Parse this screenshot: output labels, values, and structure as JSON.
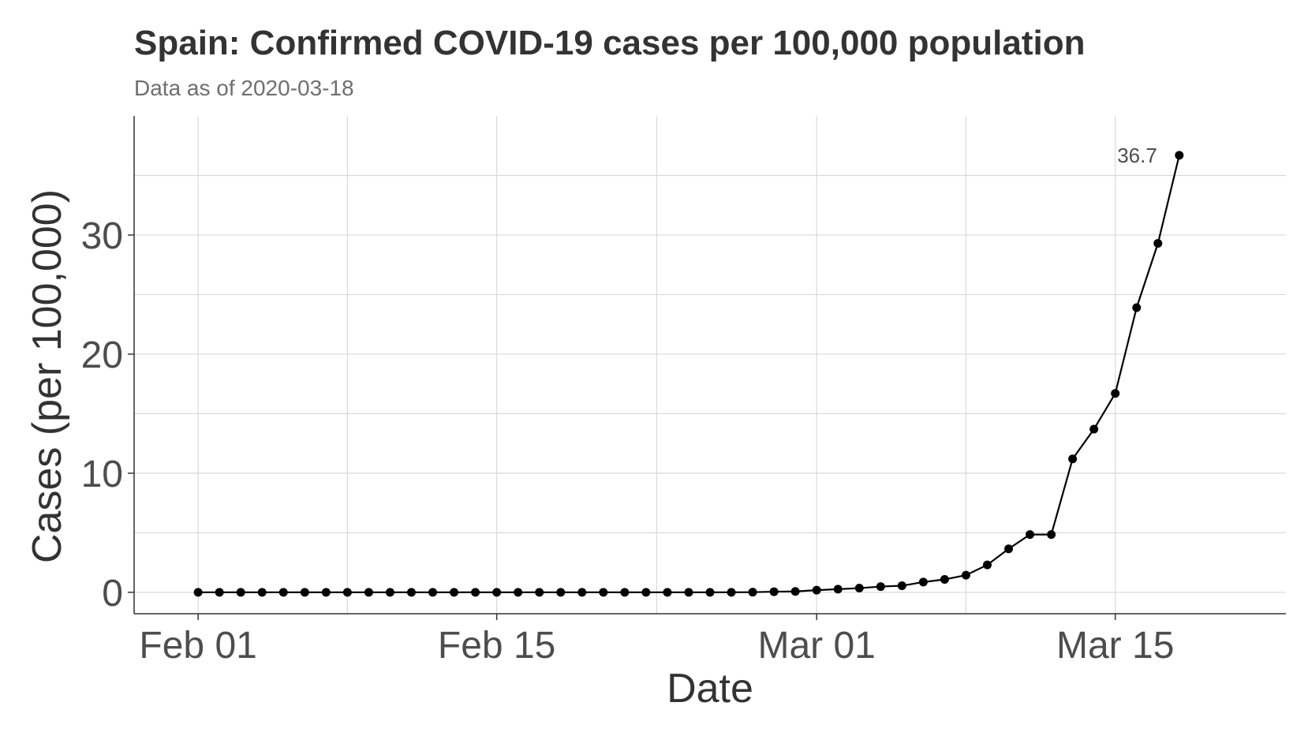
{
  "chart_data": {
    "type": "line",
    "title": "Spain: Confirmed COVID-19 cases per 100,000 population",
    "subtitle": "Data as of 2020-03-18",
    "xlabel": "Date",
    "ylabel": "Cases (per 100,000)",
    "x_tick_labels": [
      {
        "date": "2020-02-01",
        "label": "Feb 01"
      },
      {
        "date": "2020-02-15",
        "label": "Feb 15"
      },
      {
        "date": "2020-03-01",
        "label": "Mar 01"
      },
      {
        "date": "2020-03-15",
        "label": "Mar 15"
      }
    ],
    "y_ticks": [
      0,
      10,
      20,
      30
    ],
    "xlim": [
      "2020-01-29",
      "2020-03-23"
    ],
    "ylim": [
      -1.8,
      40
    ],
    "grid": true,
    "colors": {
      "line": "#000000",
      "point": "#000000",
      "grid": "#d9d9d9",
      "axis": "#333333"
    },
    "series": [
      {
        "x": [
          "2020-02-01",
          "2020-02-02",
          "2020-02-03",
          "2020-02-04",
          "2020-02-05",
          "2020-02-06",
          "2020-02-07",
          "2020-02-08",
          "2020-02-09",
          "2020-02-10",
          "2020-02-11",
          "2020-02-12",
          "2020-02-13",
          "2020-02-14",
          "2020-02-15",
          "2020-02-16",
          "2020-02-17",
          "2020-02-18",
          "2020-02-19",
          "2020-02-20",
          "2020-02-21",
          "2020-02-22",
          "2020-02-23",
          "2020-02-24",
          "2020-02-25",
          "2020-02-26",
          "2020-02-27",
          "2020-02-28",
          "2020-02-29",
          "2020-03-01",
          "2020-03-02",
          "2020-03-03",
          "2020-03-04",
          "2020-03-05",
          "2020-03-06",
          "2020-03-07",
          "2020-03-08",
          "2020-03-09",
          "2020-03-10",
          "2020-03-11",
          "2020-03-12",
          "2020-03-13",
          "2020-03-14",
          "2020-03-15",
          "2020-03-16",
          "2020-03-17",
          "2020-03-18"
        ],
        "values": [
          0,
          0,
          0,
          0,
          0,
          0,
          0,
          0,
          0,
          0,
          0,
          0,
          0,
          0,
          0,
          0,
          0,
          0,
          0,
          0,
          0,
          0,
          0,
          0,
          0,
          0,
          0.01,
          0.05,
          0.07,
          0.18,
          0.26,
          0.35,
          0.48,
          0.55,
          0.86,
          1.08,
          1.44,
          2.3,
          3.65,
          4.85,
          4.85,
          11.2,
          13.7,
          16.7,
          23.9,
          29.3,
          36.7
        ]
      }
    ],
    "annotations": [
      {
        "date": "2020-03-18",
        "value": 36.7,
        "text": "36.7"
      }
    ]
  }
}
